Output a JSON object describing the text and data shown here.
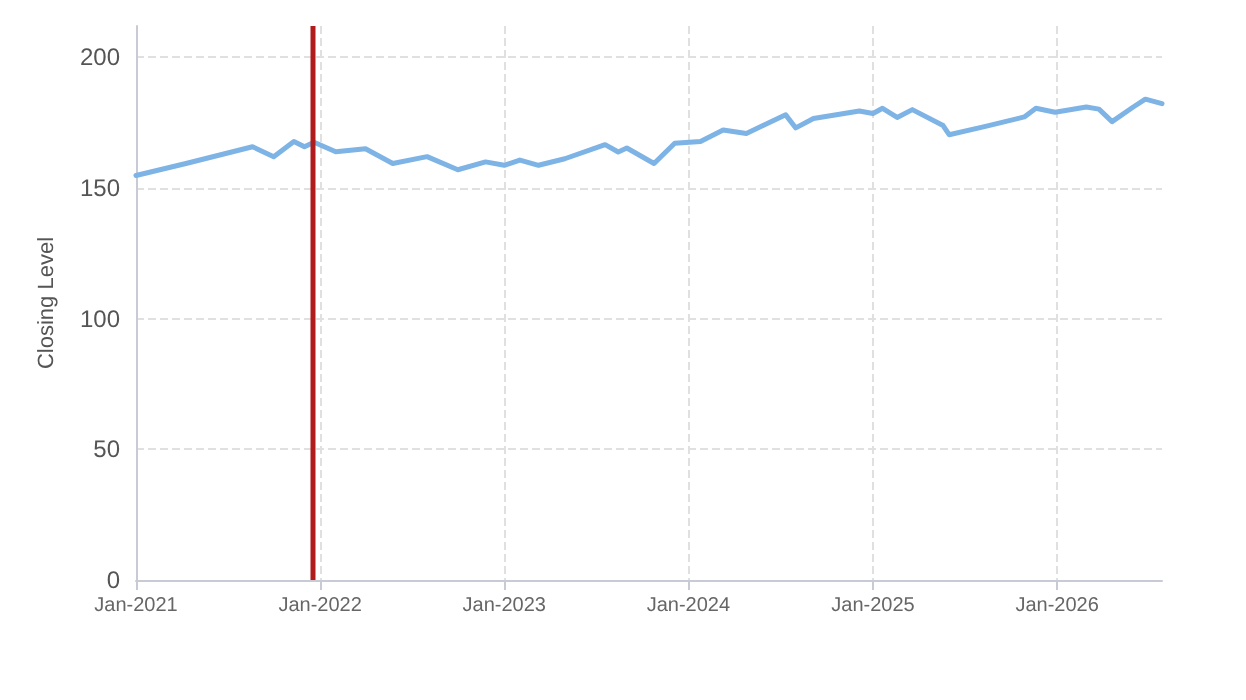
{
  "chart_data": {
    "type": "line",
    "ylabel": "Closing Level",
    "x": [
      "2021-01-01",
      "2021-04-10",
      "2021-08-20",
      "2021-10-01",
      "2021-11-10",
      "2021-12-01",
      "2021-12-20",
      "2022-02-01",
      "2022-04-01",
      "2022-05-25",
      "2022-08-01",
      "2022-10-01",
      "2022-11-25",
      "2023-01-01",
      "2023-02-01",
      "2023-03-10",
      "2023-05-01",
      "2023-07-20",
      "2023-08-15",
      "2023-09-01",
      "2023-10-25",
      "2023-12-05",
      "2024-01-25",
      "2024-03-10",
      "2024-04-25",
      "2024-07-12",
      "2024-08-01",
      "2024-09-05",
      "2024-12-05",
      "2025-01-01",
      "2025-01-20",
      "2025-02-18",
      "2025-03-20",
      "2025-05-20",
      "2025-06-01",
      "2025-08-10",
      "2025-10-28",
      "2025-11-20",
      "2025-12-28",
      "2026-02-28",
      "2026-03-25",
      "2026-04-20",
      "2026-06-01",
      "2026-06-25",
      "2026-07-28"
    ],
    "series": [
      {
        "color": "#7eb3e6",
        "values": [
          154.8,
          159.4,
          165.8,
          162,
          167.8,
          165.8,
          167.5,
          163.9,
          165,
          159.4,
          162,
          157,
          160,
          158.7,
          160.7,
          158.7,
          161.2,
          166.6,
          163.8,
          165.3,
          159.4,
          167.1,
          167.8,
          172.2,
          170.9,
          178,
          173,
          176.6,
          179.5,
          178.5,
          180.5,
          177,
          180,
          173.9,
          170.4,
          173.5,
          177.2,
          180.5,
          179,
          181,
          180.2,
          175.4,
          181,
          184,
          182.3
        ]
      }
    ],
    "xlim": [
      "2021-01-01",
      "2026-07-28"
    ],
    "xticks": [
      {
        "value": "2021-01-01",
        "label": "Jan-2021"
      },
      {
        "value": "2022-01-01",
        "label": "Jan-2022"
      },
      {
        "value": "2023-01-01",
        "label": "Jan-2023"
      },
      {
        "value": "2024-01-01",
        "label": "Jan-2024"
      },
      {
        "value": "2025-01-01",
        "label": "Jan-2025"
      },
      {
        "value": "2026-01-01",
        "label": "Jan-2026"
      }
    ],
    "ylim": [
      0,
      212
    ],
    "yticks": [
      0,
      50,
      100,
      150,
      200
    ],
    "ref_lines": [
      {
        "axis": "x",
        "value": "2021-12-15",
        "color": "#b01c1c"
      }
    ],
    "grid": true,
    "marker": "none",
    "line_style": "solid"
  }
}
